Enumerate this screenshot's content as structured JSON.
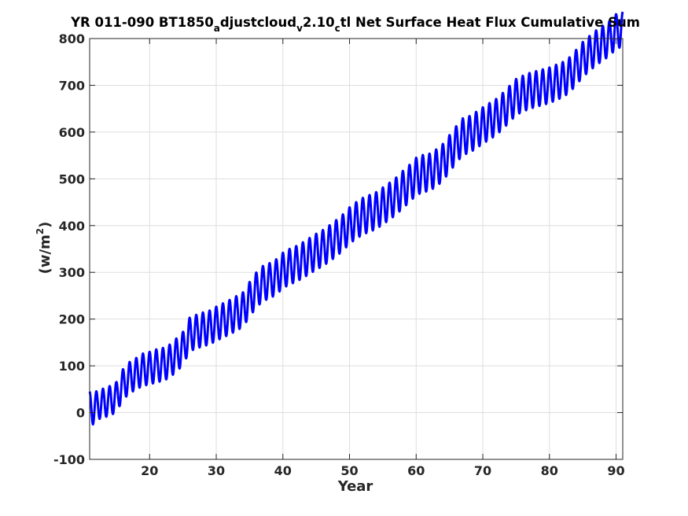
{
  "chart_data": {
    "type": "line",
    "title": {
      "parts": [
        {
          "text": "YR 011-090 BT1850",
          "shift": "base"
        },
        {
          "text": "a",
          "shift": "sub"
        },
        {
          "text": "djustcloud",
          "shift": "base"
        },
        {
          "text": "v",
          "shift": "sub"
        },
        {
          "text": "2.10",
          "shift": "base"
        },
        {
          "text": "c",
          "shift": "sub"
        },
        {
          "text": "tl Net Surface Heat Flux  Cumulative Sum",
          "shift": "base"
        }
      ]
    },
    "xlabel": "Year",
    "ylabel": {
      "base": "(w/m",
      "sup": "2",
      "close": ")"
    },
    "xlim": [
      11,
      91
    ],
    "ylim": [
      -100,
      800
    ],
    "xticks": [
      20,
      30,
      40,
      50,
      60,
      70,
      80,
      90
    ],
    "yticks": [
      -100,
      0,
      100,
      200,
      300,
      400,
      500,
      600,
      700,
      800
    ],
    "grid": true,
    "series": [
      {
        "color": "#0000ff",
        "line_width": 3,
        "period_years": 1,
        "trend": {
          "x": [
            11,
            11.5,
            12,
            13,
            14,
            15,
            16,
            17,
            18,
            19,
            20,
            21,
            22,
            23,
            24,
            25,
            26,
            27,
            28,
            29,
            30,
            31,
            32,
            33,
            34,
            35,
            36,
            37,
            38,
            39,
            40,
            41,
            42,
            43,
            44,
            45,
            46,
            47,
            48,
            49,
            50,
            51,
            52,
            53,
            54,
            55,
            56,
            57,
            58,
            59,
            60,
            61,
            62,
            63,
            64,
            65,
            66,
            67,
            68,
            69,
            70,
            71,
            72,
            73,
            74,
            75,
            76,
            77,
            78,
            79,
            80,
            81,
            82,
            83,
            84,
            85,
            86,
            87,
            88,
            89,
            90,
            91
          ],
          "y": [
            15,
            5,
            15,
            20,
            25,
            33,
            60,
            75,
            83,
            92,
            95,
            100,
            103,
            110,
            123,
            137,
            167,
            173,
            178,
            182,
            190,
            197,
            204,
            212,
            220,
            242,
            262,
            276,
            282,
            290,
            304,
            312,
            318,
            326,
            335,
            344,
            352,
            362,
            373,
            385,
            400,
            411,
            420,
            426,
            432,
            442,
            452,
            463,
            477,
            490,
            505,
            511,
            514,
            523,
            535,
            554,
            573,
            590,
            595,
            604,
            614,
            623,
            632,
            645,
            660,
            675,
            682,
            688,
            692,
            696,
            700,
            706,
            712,
            722,
            738,
            755,
            768,
            780,
            790,
            800,
            815,
            820
          ]
        },
        "amplitude": {
          "x": [
            11,
            20,
            40,
            60,
            80,
            91
          ],
          "y": [
            30,
            35,
            38,
            40,
            38,
            37
          ]
        }
      }
    ]
  }
}
